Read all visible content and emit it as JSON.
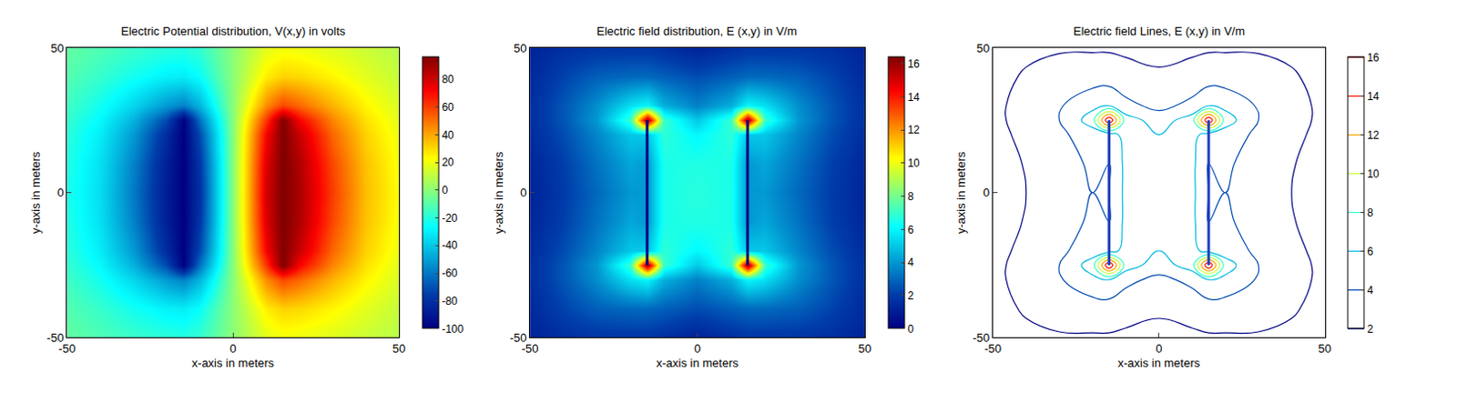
{
  "chart_data": [
    {
      "type": "heatmap",
      "title": "Electric Potential distribution, V(x,y) in volts",
      "x_label": "x-axis in meters",
      "y_label": "y-axis in meters",
      "xlim": [
        -50,
        50
      ],
      "ylim": [
        -50,
        50
      ],
      "xticks": [
        -50,
        0,
        50
      ],
      "yticks": [
        -50,
        0,
        50
      ],
      "x": [
        -50,
        -40,
        -30,
        -20,
        -15,
        -10,
        0,
        10,
        15,
        20,
        30,
        40,
        50
      ],
      "y": [
        -50,
        -40,
        -30,
        -25,
        -20,
        -10,
        0,
        10,
        20,
        25,
        30,
        40,
        50
      ],
      "cells": [
        [
          -8,
          -12,
          -16,
          -19,
          -20,
          -17,
          0,
          17,
          20,
          19,
          16,
          12,
          8
        ],
        [
          -11,
          -17,
          -24,
          -30,
          -31,
          -26,
          0,
          26,
          31,
          30,
          24,
          17,
          11
        ],
        [
          -15,
          -24,
          -37,
          -52,
          -58,
          -45,
          0,
          45,
          58,
          52,
          37,
          24,
          15
        ],
        [
          -17,
          -28,
          -46,
          -72,
          -100,
          -62,
          0,
          62,
          96,
          72,
          46,
          28,
          17
        ],
        [
          -19,
          -31,
          -52,
          -82,
          -100,
          -72,
          0,
          72,
          96,
          82,
          52,
          31,
          19
        ],
        [
          -21,
          -34,
          -58,
          -87,
          -100,
          -78,
          0,
          78,
          96,
          87,
          58,
          34,
          21
        ],
        [
          -22,
          -35,
          -60,
          -88,
          -100,
          -80,
          0,
          80,
          96,
          88,
          60,
          35,
          22
        ],
        [
          -21,
          -34,
          -58,
          -87,
          -100,
          -78,
          0,
          78,
          96,
          87,
          58,
          34,
          21
        ],
        [
          -19,
          -31,
          -52,
          -82,
          -100,
          -72,
          0,
          72,
          96,
          82,
          52,
          31,
          19
        ],
        [
          -17,
          -28,
          -46,
          -72,
          -100,
          -62,
          0,
          62,
          96,
          72,
          46,
          28,
          17
        ],
        [
          -15,
          -24,
          -37,
          -52,
          -58,
          -45,
          0,
          45,
          58,
          52,
          37,
          24,
          15
        ],
        [
          -11,
          -17,
          -24,
          -30,
          -31,
          -26,
          0,
          26,
          31,
          30,
          24,
          17,
          11
        ],
        [
          -8,
          -12,
          -16,
          -19,
          -20,
          -17,
          0,
          17,
          20,
          19,
          16,
          12,
          8
        ]
      ],
      "colorbar_range": [
        -100,
        96
      ],
      "colorbar_ticks": [
        -100,
        -80,
        -60,
        -40,
        -20,
        0,
        20,
        40,
        60,
        80
      ]
    },
    {
      "type": "heatmap",
      "title": "Electric field distribution, E (x,y) in V/m",
      "x_label": "x-axis in meters",
      "y_label": "y-axis in meters",
      "xlim": [
        -50,
        50
      ],
      "ylim": [
        -50,
        50
      ],
      "xticks": [
        -50,
        0,
        50
      ],
      "yticks": [
        -50,
        0,
        50
      ],
      "x": [
        -50,
        -40,
        -30,
        -20,
        -15,
        -10,
        0,
        10,
        15,
        20,
        30,
        40,
        50
      ],
      "y": [
        -50,
        -40,
        -30,
        -25,
        -20,
        -10,
        0,
        10,
        20,
        25,
        30,
        40,
        50
      ],
      "cells": [
        [
          1.2,
          1.6,
          1.8,
          1.8,
          1.8,
          1.6,
          1.2,
          1.6,
          1.8,
          1.8,
          1.8,
          1.6,
          1.2
        ],
        [
          1.4,
          2.2,
          2.8,
          3,
          3,
          2.8,
          2.4,
          2.8,
          3,
          3,
          2.8,
          2.2,
          1.4
        ],
        [
          1.6,
          2.6,
          3.8,
          5.5,
          6,
          4.5,
          3.5,
          4.5,
          6,
          5.5,
          3.8,
          2.6,
          1.6
        ],
        [
          1.6,
          2.6,
          4,
          7,
          16,
          7,
          5,
          7,
          16,
          7,
          4,
          2.6,
          1.6
        ],
        [
          1.5,
          2.4,
          3.6,
          5,
          5,
          6.8,
          6,
          6.8,
          5,
          5,
          3.6,
          2.4,
          1.5
        ],
        [
          1.3,
          2.1,
          3.2,
          4.3,
          4,
          6.5,
          6.6,
          6.5,
          4,
          4.3,
          3.2,
          2.1,
          1.3
        ],
        [
          1.2,
          2,
          3,
          4,
          4,
          6.5,
          6.7,
          6.5,
          4,
          4,
          3,
          2,
          1.2
        ],
        [
          1.3,
          2.1,
          3.2,
          4.3,
          4,
          6.5,
          6.6,
          6.5,
          4,
          4.3,
          3.2,
          2.1,
          1.3
        ],
        [
          1.5,
          2.4,
          3.6,
          5,
          5,
          6.8,
          6,
          6.8,
          5,
          5,
          3.6,
          2.4,
          1.5
        ],
        [
          1.6,
          2.6,
          4,
          7,
          16,
          7,
          5,
          7,
          16,
          7,
          4,
          2.6,
          1.6
        ],
        [
          1.6,
          2.6,
          3.8,
          5.5,
          6,
          4.5,
          3.5,
          4.5,
          6,
          5.5,
          3.8,
          2.6,
          1.6
        ],
        [
          1.4,
          2.2,
          2.8,
          3,
          3,
          2.8,
          2.4,
          2.8,
          3,
          3,
          2.8,
          2.2,
          1.4
        ],
        [
          1.2,
          1.6,
          1.8,
          1.8,
          1.8,
          1.6,
          1.2,
          1.6,
          1.8,
          1.8,
          1.8,
          1.6,
          1.2
        ]
      ],
      "colorbar_range": [
        0,
        16.4
      ],
      "colorbar_ticks": [
        0,
        2,
        4,
        6,
        8,
        10,
        12,
        14,
        16
      ],
      "plates": [
        {
          "x": -15,
          "y": [
            -25,
            25
          ],
          "color": "#00007f"
        },
        {
          "x": 15,
          "y": [
            -25,
            25
          ],
          "color": "#00007f"
        }
      ]
    },
    {
      "type": "contour",
      "title": "Electric field Lines, E (x,y) in V/m",
      "x_label": "x-axis in meters",
      "y_label": "y-axis in meters",
      "xlim": [
        -50,
        50
      ],
      "ylim": [
        -50,
        50
      ],
      "xticks": [
        -50,
        0,
        50
      ],
      "yticks": [
        -50,
        0,
        50
      ],
      "x": [
        -50,
        -40,
        -30,
        -20,
        -15,
        -10,
        0,
        10,
        15,
        20,
        30,
        40,
        50
      ],
      "y": [
        -50,
        -40,
        -30,
        -25,
        -20,
        -10,
        0,
        10,
        20,
        25,
        30,
        40,
        50
      ],
      "cells": [
        [
          1.2,
          1.6,
          1.8,
          1.8,
          1.8,
          1.6,
          1.2,
          1.6,
          1.8,
          1.8,
          1.8,
          1.6,
          1.2
        ],
        [
          1.4,
          2.2,
          2.8,
          3,
          3,
          2.8,
          2.4,
          2.8,
          3,
          3,
          2.8,
          2.2,
          1.4
        ],
        [
          1.6,
          2.6,
          3.8,
          5.5,
          6,
          4.5,
          3.5,
          4.5,
          6,
          5.5,
          3.8,
          2.6,
          1.6
        ],
        [
          1.6,
          2.6,
          4,
          7,
          16,
          7,
          5,
          7,
          16,
          7,
          4,
          2.6,
          1.6
        ],
        [
          1.5,
          2.4,
          3.6,
          5,
          5,
          6.8,
          6,
          6.8,
          5,
          5,
          3.6,
          2.4,
          1.5
        ],
        [
          1.3,
          2.1,
          3.2,
          4.3,
          4,
          6.5,
          6.6,
          6.5,
          4,
          4.3,
          3.2,
          2.1,
          1.3
        ],
        [
          1.2,
          2,
          3,
          4,
          4,
          6.5,
          6.7,
          6.5,
          4,
          4,
          3,
          2,
          1.2
        ],
        [
          1.3,
          2.1,
          3.2,
          4.3,
          4,
          6.5,
          6.6,
          6.5,
          4,
          4.3,
          3.2,
          2.1,
          1.3
        ],
        [
          1.5,
          2.4,
          3.6,
          5,
          5,
          6.8,
          6,
          6.8,
          5,
          5,
          3.6,
          2.4,
          1.5
        ],
        [
          1.6,
          2.6,
          4,
          7,
          16,
          7,
          5,
          7,
          16,
          7,
          4,
          2.6,
          1.6
        ],
        [
          1.6,
          2.6,
          3.8,
          5.5,
          6,
          4.5,
          3.5,
          4.5,
          6,
          5.5,
          3.8,
          2.6,
          1.6
        ],
        [
          1.4,
          2.2,
          2.8,
          3,
          3,
          2.8,
          2.4,
          2.8,
          3,
          3,
          2.8,
          2.2,
          1.4
        ],
        [
          1.2,
          1.6,
          1.8,
          1.8,
          1.8,
          1.6,
          1.2,
          1.6,
          1.8,
          1.8,
          1.8,
          1.6,
          1.2
        ]
      ],
      "colorbar_range": [
        2,
        16
      ],
      "colorbar_ticks": [
        2,
        4,
        6,
        8,
        10,
        12,
        14,
        16
      ],
      "plates": [
        {
          "x": -15,
          "y": [
            -25,
            25
          ],
          "color": "#1f3fbf"
        },
        {
          "x": 15,
          "y": [
            -25,
            25
          ],
          "color": "#1f3fbf"
        }
      ]
    }
  ]
}
